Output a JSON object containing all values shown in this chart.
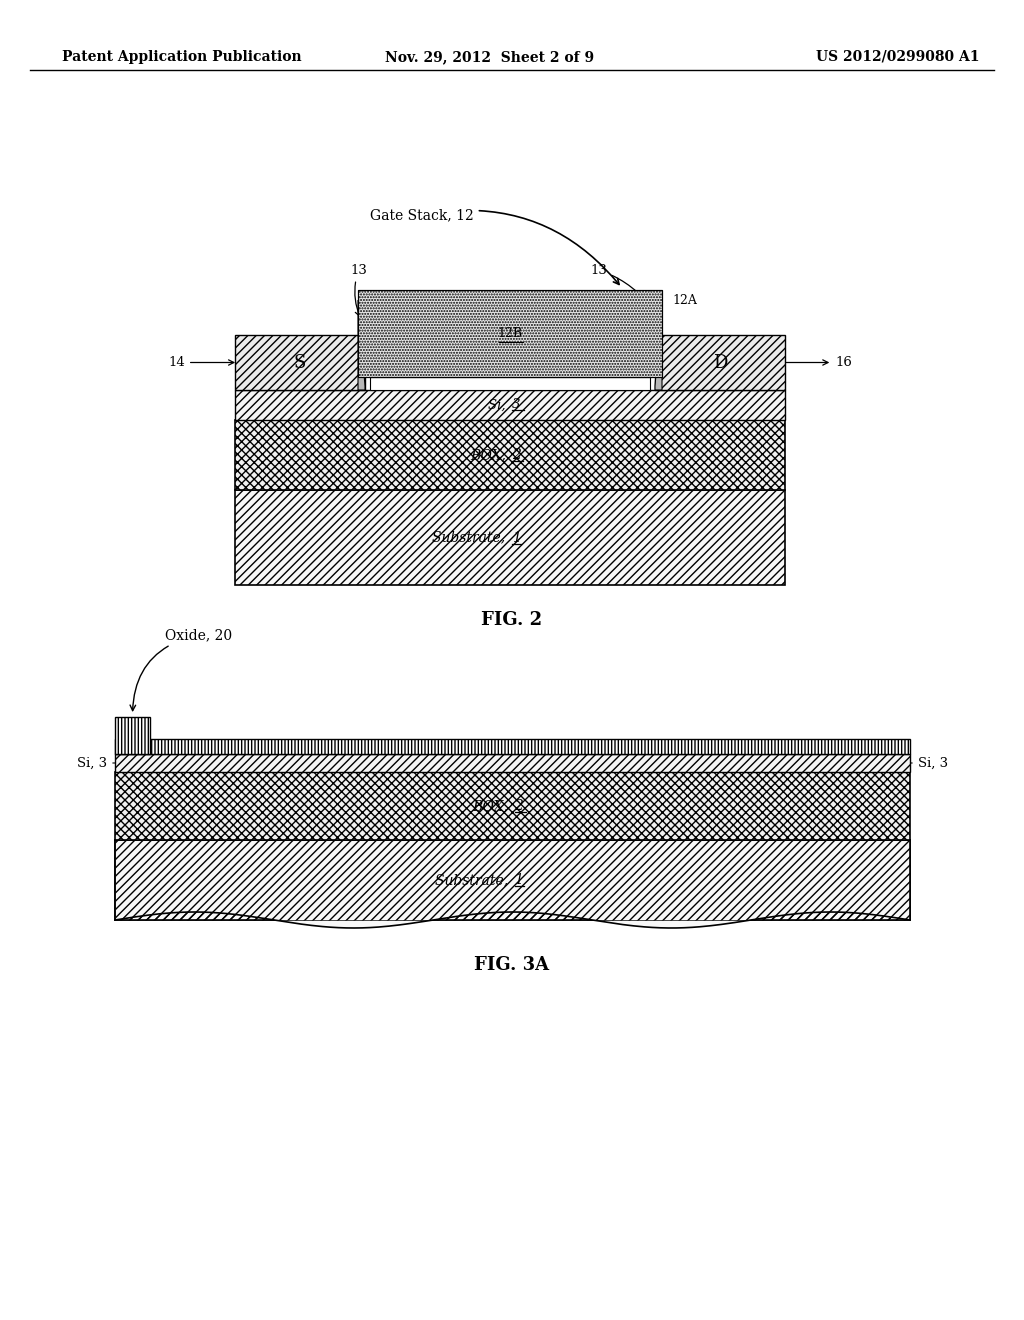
{
  "bg_color": "#ffffff",
  "header_left": "Patent Application Publication",
  "header_center": "Nov. 29, 2012  Sheet 2 of 9",
  "header_right": "US 2012/0299080 A1",
  "fig2_caption": "FIG. 2",
  "fig3a_caption": "FIG. 3A"
}
